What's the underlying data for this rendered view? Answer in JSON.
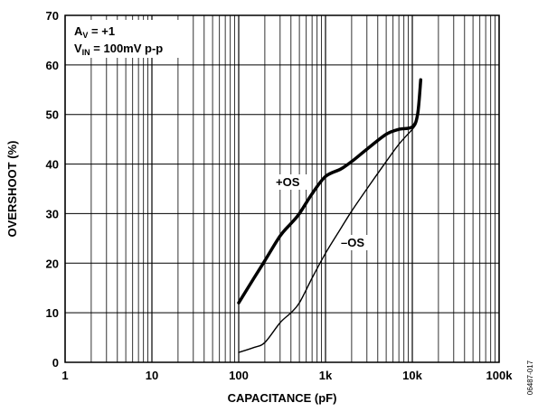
{
  "chart_data": {
    "type": "line",
    "xlabel": "CAPACITANCE (pF)",
    "ylabel": "OVERSHOOT (%)",
    "x_scale": "log",
    "xlim": [
      1,
      100000
    ],
    "ylim": [
      0,
      70
    ],
    "grid": true,
    "x_tick_labels": [
      "1",
      "10",
      "100",
      "1k",
      "10k",
      "100k"
    ],
    "x_tick_values": [
      1,
      10,
      100,
      1000,
      10000,
      100000
    ],
    "y_tick_labels": [
      "0",
      "10",
      "20",
      "30",
      "40",
      "50",
      "60",
      "70"
    ],
    "y_tick_values": [
      0,
      10,
      20,
      30,
      40,
      50,
      60,
      70
    ],
    "conditions": [
      {
        "main": "A",
        "sub": "V",
        "rest": " = +1"
      },
      {
        "main": "V",
        "sub": "IN",
        "rest": " = 100mV p-p"
      }
    ],
    "series": [
      {
        "name": "+OS",
        "color": "#000000",
        "x": [
          100,
          150,
          200,
          300,
          400,
          500,
          700,
          1000,
          1500,
          2000,
          3000,
          5000,
          7000,
          10000,
          11500,
          12500
        ],
        "y": [
          12,
          17,
          20.5,
          25.5,
          28,
          30,
          34,
          37.5,
          39,
          40.5,
          43,
          46,
          47,
          47.5,
          50,
          57
        ]
      },
      {
        "name": "–OS",
        "color": "#000000",
        "x": [
          100,
          150,
          200,
          300,
          400,
          500,
          700,
          1000,
          1500,
          2000,
          3000,
          5000,
          7000,
          10000,
          11000
        ],
        "y": [
          2,
          3,
          4,
          8,
          10,
          12,
          17,
          22,
          27,
          30.5,
          35,
          40.5,
          44,
          47,
          48
        ]
      }
    ]
  },
  "figure_id": "06487-017"
}
